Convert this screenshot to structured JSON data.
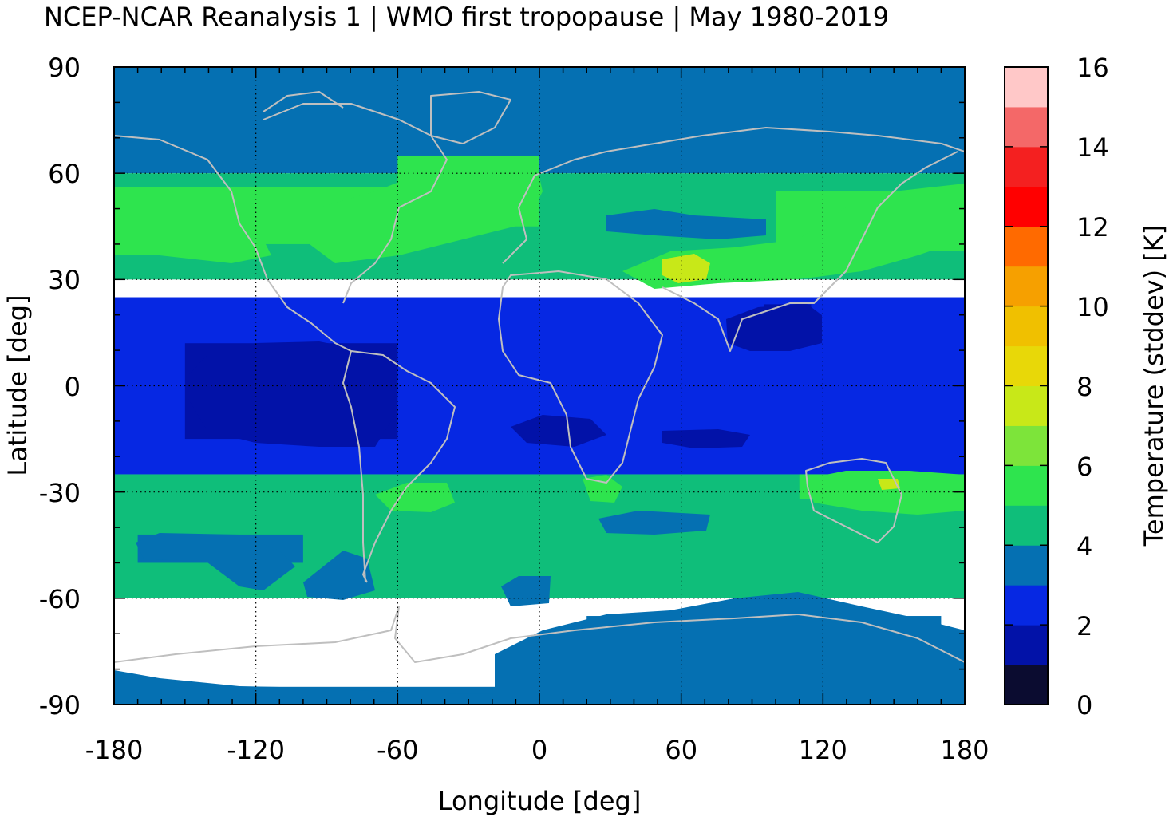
{
  "chart_data": {
    "type": "heatmap",
    "title": "NCEP-NCAR Reanalysis 1 | WMO first tropopause | May 1980-2019",
    "xlabel": "Longitude [deg]",
    "ylabel": "Latitude [deg]",
    "colorbar_label": "Temperature (stddev) [K]",
    "xlim": [
      -180,
      180
    ],
    "ylim": [
      -90,
      90
    ],
    "xticks": [
      "-180",
      "-120",
      "-60",
      "0",
      "60",
      "120",
      "180"
    ],
    "yticks": [
      "90",
      "60",
      "30",
      "0",
      "-30",
      "-60",
      "-90"
    ],
    "colorbar_ticks": [
      "16",
      "14",
      "12",
      "10",
      "8",
      "6",
      "4",
      "2",
      "0"
    ],
    "colorbar_range": [
      0,
      16
    ],
    "colorbar_colors": [
      "#0b0c30",
      "#0212a8",
      "#0628e3",
      "#0570b2",
      "#0fbe7a",
      "#2ee44e",
      "#7de43a",
      "#c8e818",
      "#e8d808",
      "#f0c000",
      "#f6a000",
      "#ff6a00",
      "#ff0000",
      "#f42020",
      "#f46868",
      "#ffc8c8"
    ],
    "grid": true,
    "coastlines": true,
    "regions": [
      {
        "value": 3.5,
        "lon": [
          -180,
          180
        ],
        "lat": [
          60,
          90
        ],
        "note": "polar north"
      },
      {
        "value": 4.5,
        "lon": [
          -180,
          180
        ],
        "lat": [
          30,
          60
        ]
      },
      {
        "value": 5.5,
        "lon": [
          -180,
          -60
        ],
        "lat": [
          40,
          56
        ]
      },
      {
        "value": 5.5,
        "lon": [
          -60,
          0
        ],
        "lat": [
          45,
          65
        ]
      },
      {
        "value": 5.5,
        "lon": [
          100,
          180
        ],
        "lat": [
          38,
          55
        ]
      },
      {
        "value": 7.5,
        "lon": [
          55,
          70
        ],
        "lat": [
          30,
          36
        ]
      },
      {
        "value": 2.5,
        "lon": [
          -180,
          180
        ],
        "lat": [
          -25,
          25
        ]
      },
      {
        "value": 1.5,
        "lon": [
          -150,
          -60
        ],
        "lat": [
          -15,
          12
        ]
      },
      {
        "value": 1.5,
        "lon": [
          95,
          115
        ],
        "lat": [
          12,
          23
        ]
      },
      {
        "value": 4.5,
        "lon": [
          -180,
          180
        ],
        "lat": [
          -60,
          -25
        ]
      },
      {
        "value": 5.5,
        "lon": [
          110,
          180
        ],
        "lat": [
          -32,
          -25
        ]
      },
      {
        "value": 3.5,
        "lon": [
          -170,
          -100
        ],
        "lat": [
          -50,
          -42
        ]
      },
      {
        "value": 3.5,
        "lon": [
          20,
          170
        ],
        "lat": [
          -90,
          -65
        ]
      },
      {
        "value": 3.5,
        "lon": [
          -180,
          180
        ],
        "lat": [
          -90,
          -85
        ]
      }
    ]
  }
}
